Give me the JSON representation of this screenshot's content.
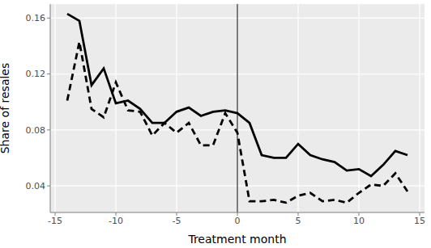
{
  "chart_data": {
    "type": "line",
    "xlabel": "Treatment month",
    "ylabel": "Share of resales",
    "x": [
      -14,
      -13,
      -12,
      -11,
      -10,
      -9,
      -8,
      -7,
      -6,
      -5,
      -4,
      -3,
      -2,
      -1,
      0,
      1,
      2,
      3,
      4,
      5,
      6,
      7,
      8,
      9,
      10,
      11,
      12,
      13,
      14
    ],
    "series": [
      {
        "color": "#000000",
        "line_style": "solid",
        "values": [
          0.163,
          0.158,
          0.112,
          0.124,
          0.099,
          0.101,
          0.095,
          0.085,
          0.085,
          0.093,
          0.096,
          0.09,
          0.093,
          0.094,
          0.092,
          0.085,
          0.062,
          0.06,
          0.06,
          0.07,
          0.062,
          0.059,
          0.057,
          0.051,
          0.052,
          0.047,
          0.055,
          0.065,
          0.062
        ]
      },
      {
        "color": "#000000",
        "line_style": "dashed",
        "values": [
          0.101,
          0.143,
          0.095,
          0.089,
          0.114,
          0.094,
          0.093,
          0.076,
          0.085,
          0.078,
          0.085,
          0.069,
          0.069,
          0.092,
          0.078,
          0.029,
          0.029,
          0.03,
          0.028,
          0.033,
          0.035,
          0.029,
          0.03,
          0.028,
          0.035,
          0.041,
          0.04,
          0.049,
          0.036
        ]
      }
    ],
    "vline": 0,
    "xlim": [
      -15.4,
      15.4
    ],
    "xticks": [
      -15,
      -10,
      -5,
      0,
      5,
      10,
      15
    ],
    "ylim": [
      0.021,
      0.17
    ],
    "yticks": [
      0.04,
      0.08,
      0.12,
      0.16
    ],
    "grid": true
  }
}
